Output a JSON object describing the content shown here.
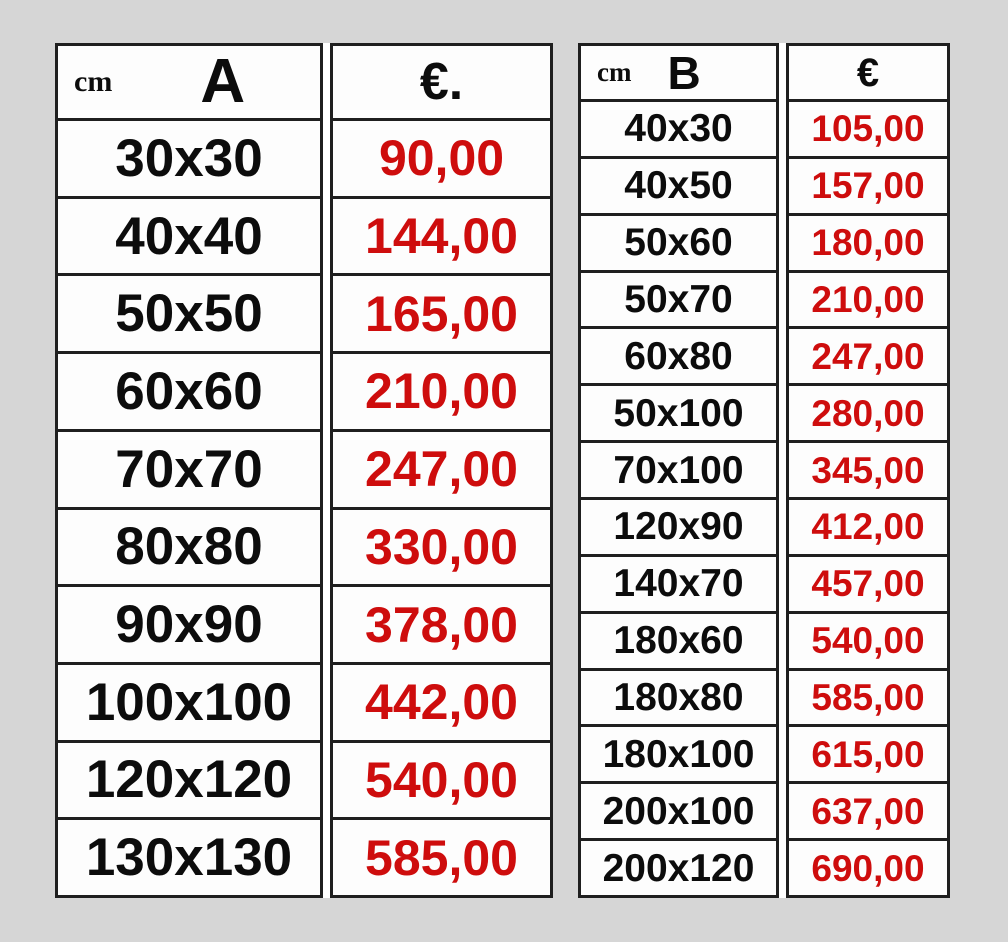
{
  "page": {
    "background_color": "#d6d6d6"
  },
  "colors": {
    "price_red": "#ce0d0d",
    "text_black": "#0c0c0c",
    "border_black": "#1f1f1f",
    "cell_white": "#fdfdfd"
  },
  "tables": [
    {
      "name_label": "A",
      "unit_label": "cm",
      "currency_label": "€.",
      "rows": [
        {
          "size": "30x30",
          "price": "90,00"
        },
        {
          "size": "40x40",
          "price": "144,00"
        },
        {
          "size": "50x50",
          "price": "165,00"
        },
        {
          "size": "60x60",
          "price": "210,00"
        },
        {
          "size": "70x70",
          "price": "247,00"
        },
        {
          "size": "80x80",
          "price": "330,00"
        },
        {
          "size": "90x90",
          "price": "378,00"
        },
        {
          "size": "100x100",
          "price": "442,00"
        },
        {
          "size": "120x120",
          "price": "540,00"
        },
        {
          "size": "130x130",
          "price": "585,00"
        }
      ]
    },
    {
      "name_label": "B",
      "unit_label": "cm",
      "currency_label": "€",
      "rows": [
        {
          "size": "40x30",
          "price": "105,00"
        },
        {
          "size": "40x50",
          "price": "157,00"
        },
        {
          "size": "50x60",
          "price": "180,00"
        },
        {
          "size": "50x70",
          "price": "210,00"
        },
        {
          "size": "60x80",
          "price": "247,00"
        },
        {
          "size": "50x100",
          "price": "280,00"
        },
        {
          "size": "70x100",
          "price": "345,00"
        },
        {
          "size": "120x90",
          "price": "412,00"
        },
        {
          "size": "140x70",
          "price": "457,00"
        },
        {
          "size": "180x60",
          "price": "540,00"
        },
        {
          "size": "180x80",
          "price": "585,00"
        },
        {
          "size": "180x100",
          "price": "615,00"
        },
        {
          "size": "200x100",
          "price": "637,00"
        },
        {
          "size": "200x120",
          "price": "690,00"
        }
      ]
    }
  ]
}
